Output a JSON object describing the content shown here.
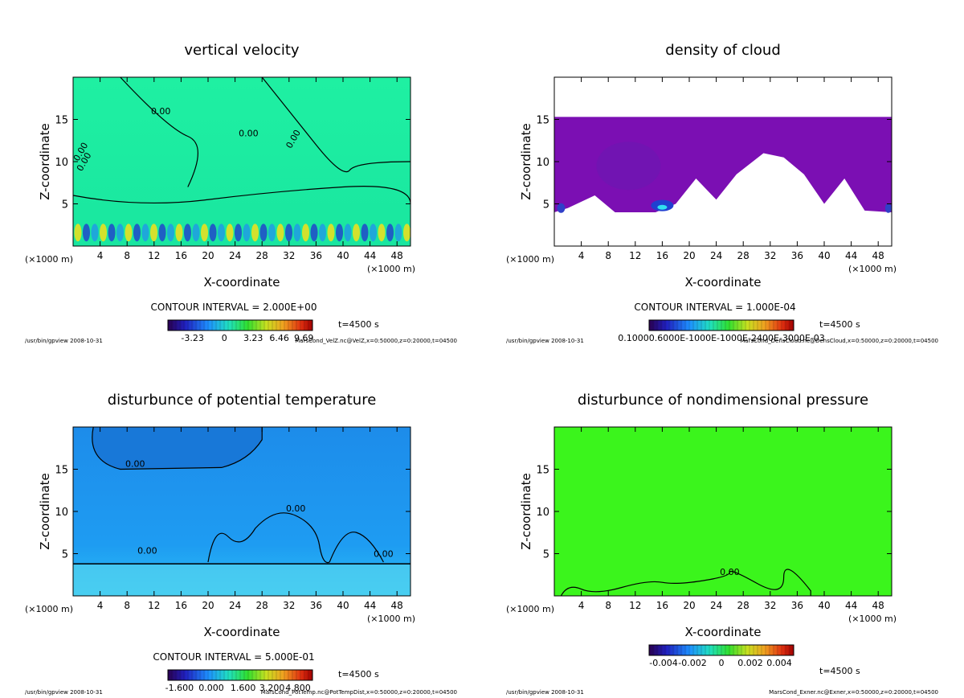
{
  "chart_data": [
    {
      "type": "heatmap",
      "title": "vertical velocity",
      "xlabel": "X-coordinate",
      "ylabel": "Z-coordinate",
      "x_unit_left": "(×1000 m)",
      "x_unit_right": "(×1000 m)",
      "x_ticks": [
        4,
        8,
        12,
        16,
        20,
        24,
        28,
        32,
        36,
        40,
        44,
        48
      ],
      "y_ticks": [
        5,
        10,
        15
      ],
      "xlim": [
        0,
        50
      ],
      "ylim": [
        0,
        20
      ],
      "contour_interval": "CONTOUR INTERVAL = 2.000E+00",
      "contour_labels": [
        "0.00",
        "0.00",
        "0.00",
        "0.00",
        "0.00"
      ],
      "colorbar_ticks": [
        "-3.23",
        "0",
        "3.23",
        "6.46",
        "9.69"
      ],
      "colorbar_palette": "rainbow",
      "colorbar_tick_pos": [
        0.17,
        0.39,
        0.59,
        0.77,
        0.94
      ],
      "time_label": "t=4500 s",
      "footer_left": "/usr/bin/gpview 2008-10-31",
      "footer_right": "MarsCond_VelZ.nc@VelZ,x=0:50000,z=0:20000,t=04500",
      "background": "#1FF0A2"
    },
    {
      "type": "heatmap",
      "title": "density of cloud",
      "xlabel": "X-coordinate",
      "ylabel": "Z-coordinate",
      "x_unit_left": "(×1000 m)",
      "x_unit_right": "(×1000 m)",
      "x_ticks": [
        4,
        8,
        12,
        16,
        20,
        24,
        28,
        32,
        36,
        40,
        44,
        48
      ],
      "y_ticks": [
        5,
        10,
        15
      ],
      "xlim": [
        0,
        50
      ],
      "ylim": [
        0,
        20
      ],
      "contour_interval": "CONTOUR INTERVAL = 1.000E-04",
      "contour_labels": [],
      "colorbar_ticks": [
        "0.10000.6000E-1000E-1000E-2400E-3000E-03"
      ],
      "colorbar_palette": "rainbow",
      "colorbar_tick_pos": [
        0.5
      ],
      "time_label": "t=4500 s",
      "footer_left": "/usr/bin/gpview 2008-10-31",
      "footer_right": "MarsCond_DensCloud.nc@DensCloud,x=0:50000,z=0:20000,t=04500",
      "background": "#7B0FB3"
    },
    {
      "type": "heatmap",
      "title": "disturbunce of potential temperature",
      "xlabel": "X-coordinate",
      "ylabel": "Z-coordinate",
      "x_unit_left": "(×1000 m)",
      "x_unit_right": "(×1000 m)",
      "x_ticks": [
        4,
        8,
        12,
        16,
        20,
        24,
        28,
        32,
        36,
        40,
        44,
        48
      ],
      "y_ticks": [
        5,
        10,
        15
      ],
      "xlim": [
        0,
        50
      ],
      "ylim": [
        0,
        20
      ],
      "contour_interval": "CONTOUR INTERVAL = 5.000E-01",
      "contour_labels": [
        "0.00",
        "0.00",
        "0.00",
        "0.00"
      ],
      "colorbar_ticks": [
        "-1.600",
        "0.000",
        "1.600",
        "3.200",
        "4.800"
      ],
      "colorbar_palette": "rainbow",
      "colorbar_tick_pos": [
        0.08,
        0.3,
        0.52,
        0.72,
        0.9
      ],
      "time_label": "t=4500 s",
      "footer_left": "/usr/bin/gpview 2008-10-31",
      "footer_right": "MarsCond_PotTemp.nc@PotTempDist,x=0:50000,z=0:20000,t=04500",
      "background": "#1D96F0"
    },
    {
      "type": "heatmap",
      "title": "disturbunce of nondimensional pressure",
      "xlabel": "X-coordinate",
      "ylabel": "Z-coordinate",
      "x_unit_left": "(×1000 m)",
      "x_unit_right": "(×1000 m)",
      "x_ticks": [
        4,
        8,
        12,
        16,
        20,
        24,
        28,
        32,
        36,
        40,
        44,
        48
      ],
      "y_ticks": [
        5,
        10,
        15
      ],
      "xlim": [
        0,
        50
      ],
      "ylim": [
        0,
        20
      ],
      "contour_interval": "",
      "contour_labels": [
        "0.00"
      ],
      "colorbar_ticks": [
        "-0.004",
        "-0.002",
        "0",
        "0.002",
        "0.004"
      ],
      "colorbar_palette": "rainbow",
      "colorbar_tick_pos": [
        0.1,
        0.3,
        0.5,
        0.7,
        0.9
      ],
      "time_label": "t=4500 s",
      "footer_left": "/usr/bin/gpview 2008-10-31",
      "footer_right": "MarsCond_Exner.nc@Exner,x=0:50000,z=0:20000,t=04500",
      "background": "#3BF51C"
    }
  ]
}
